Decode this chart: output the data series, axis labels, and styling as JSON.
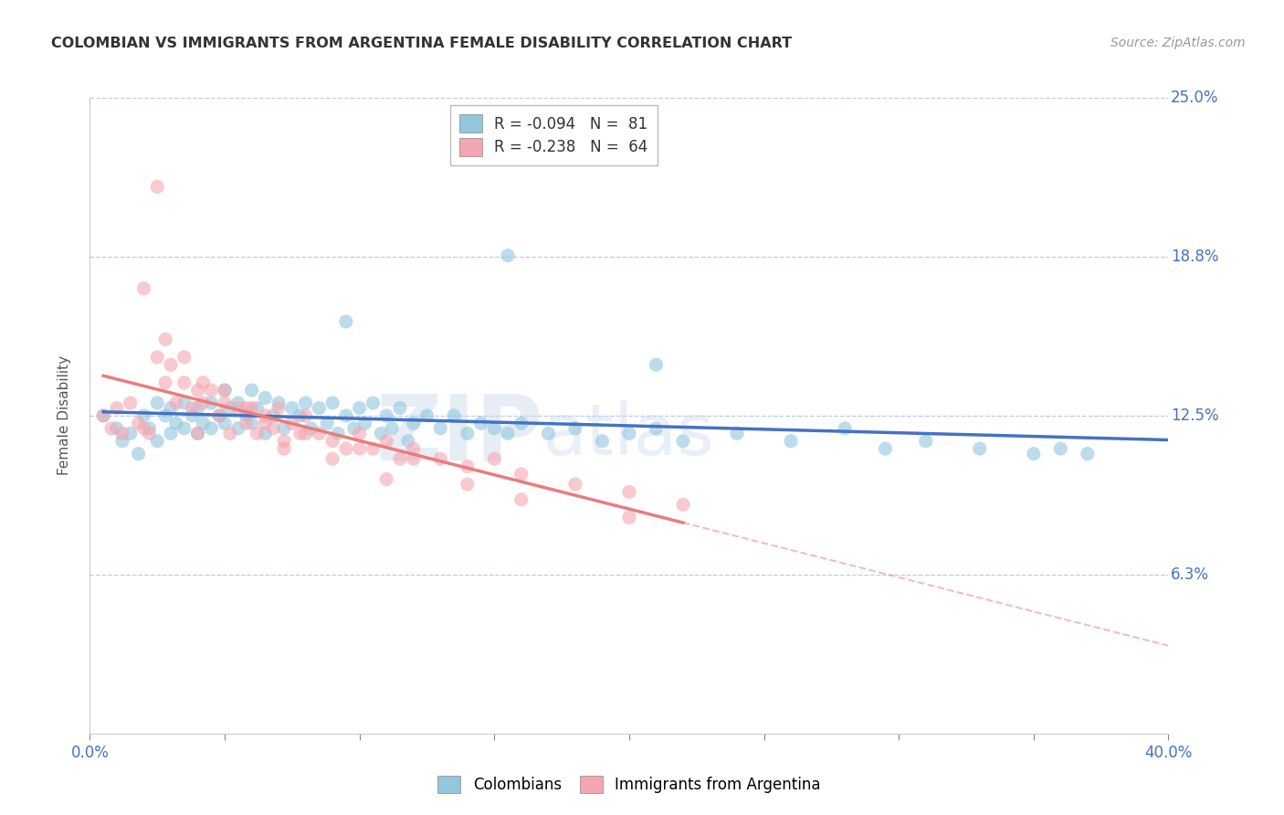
{
  "title": "COLOMBIAN VS IMMIGRANTS FROM ARGENTINA FEMALE DISABILITY CORRELATION CHART",
  "source": "Source: ZipAtlas.com",
  "ylabel": "Female Disability",
  "xlim": [
    0.0,
    0.4
  ],
  "ylim": [
    0.0,
    0.25
  ],
  "yticks": [
    0.0,
    0.0625,
    0.125,
    0.1875,
    0.25
  ],
  "ytick_labels": [
    "",
    "6.3%",
    "12.5%",
    "18.8%",
    "25.0%"
  ],
  "xticks": [
    0.0,
    0.05,
    0.1,
    0.15,
    0.2,
    0.25,
    0.3,
    0.35,
    0.4
  ],
  "legend_r1": "R = -0.094",
  "legend_n1": "N =  81",
  "legend_r2": "R = -0.238",
  "legend_n2": "N =  64",
  "color_colombians": "#92c5de",
  "color_argentina": "#f4a5b0",
  "color_line_colombians": "#4472c4",
  "color_line_argentina": "#e87d7d",
  "watermark_zip": "ZIP",
  "watermark_atlas": "atlas",
  "colombians_x": [
    0.005,
    0.01,
    0.012,
    0.015,
    0.018,
    0.02,
    0.022,
    0.025,
    0.025,
    0.028,
    0.03,
    0.03,
    0.032,
    0.035,
    0.035,
    0.038,
    0.04,
    0.04,
    0.042,
    0.045,
    0.045,
    0.048,
    0.05,
    0.05,
    0.052,
    0.055,
    0.055,
    0.058,
    0.06,
    0.06,
    0.062,
    0.065,
    0.065,
    0.068,
    0.07,
    0.072,
    0.075,
    0.078,
    0.08,
    0.082,
    0.085,
    0.088,
    0.09,
    0.092,
    0.095,
    0.098,
    0.1,
    0.102,
    0.105,
    0.108,
    0.11,
    0.112,
    0.115,
    0.118,
    0.12,
    0.125,
    0.13,
    0.135,
    0.14,
    0.145,
    0.15,
    0.155,
    0.16,
    0.17,
    0.18,
    0.19,
    0.2,
    0.21,
    0.22,
    0.24,
    0.26,
    0.28,
    0.295,
    0.31,
    0.33,
    0.35,
    0.36,
    0.37,
    0.095,
    0.155,
    0.21
  ],
  "colombians_y": [
    0.125,
    0.12,
    0.115,
    0.118,
    0.11,
    0.125,
    0.12,
    0.13,
    0.115,
    0.125,
    0.128,
    0.118,
    0.122,
    0.13,
    0.12,
    0.125,
    0.128,
    0.118,
    0.122,
    0.13,
    0.12,
    0.125,
    0.135,
    0.122,
    0.128,
    0.13,
    0.12,
    0.125,
    0.135,
    0.122,
    0.128,
    0.132,
    0.118,
    0.125,
    0.13,
    0.12,
    0.128,
    0.125,
    0.13,
    0.12,
    0.128,
    0.122,
    0.13,
    0.118,
    0.125,
    0.12,
    0.128,
    0.122,
    0.13,
    0.118,
    0.125,
    0.12,
    0.128,
    0.115,
    0.122,
    0.125,
    0.12,
    0.125,
    0.118,
    0.122,
    0.12,
    0.118,
    0.122,
    0.118,
    0.12,
    0.115,
    0.118,
    0.12,
    0.115,
    0.118,
    0.115,
    0.12,
    0.112,
    0.115,
    0.112,
    0.11,
    0.112,
    0.11,
    0.162,
    0.188,
    0.145
  ],
  "argentina_x": [
    0.005,
    0.008,
    0.01,
    0.012,
    0.015,
    0.018,
    0.02,
    0.022,
    0.025,
    0.025,
    0.028,
    0.03,
    0.032,
    0.035,
    0.038,
    0.04,
    0.04,
    0.042,
    0.045,
    0.048,
    0.05,
    0.052,
    0.055,
    0.058,
    0.06,
    0.062,
    0.065,
    0.068,
    0.07,
    0.072,
    0.075,
    0.078,
    0.08,
    0.085,
    0.09,
    0.095,
    0.1,
    0.105,
    0.11,
    0.115,
    0.12,
    0.13,
    0.14,
    0.15,
    0.16,
    0.18,
    0.2,
    0.22,
    0.02,
    0.028,
    0.035,
    0.042,
    0.05,
    0.058,
    0.065,
    0.072,
    0.08,
    0.09,
    0.1,
    0.11,
    0.12,
    0.14,
    0.16,
    0.2
  ],
  "argentina_y": [
    0.125,
    0.12,
    0.128,
    0.118,
    0.13,
    0.122,
    0.12,
    0.118,
    0.215,
    0.148,
    0.138,
    0.145,
    0.13,
    0.138,
    0.128,
    0.135,
    0.118,
    0.13,
    0.135,
    0.125,
    0.13,
    0.118,
    0.128,
    0.122,
    0.128,
    0.118,
    0.125,
    0.12,
    0.128,
    0.115,
    0.122,
    0.118,
    0.125,
    0.118,
    0.115,
    0.112,
    0.118,
    0.112,
    0.115,
    0.108,
    0.112,
    0.108,
    0.105,
    0.108,
    0.102,
    0.098,
    0.095,
    0.09,
    0.175,
    0.155,
    0.148,
    0.138,
    0.135,
    0.128,
    0.122,
    0.112,
    0.118,
    0.108,
    0.112,
    0.1,
    0.108,
    0.098,
    0.092,
    0.085
  ]
}
